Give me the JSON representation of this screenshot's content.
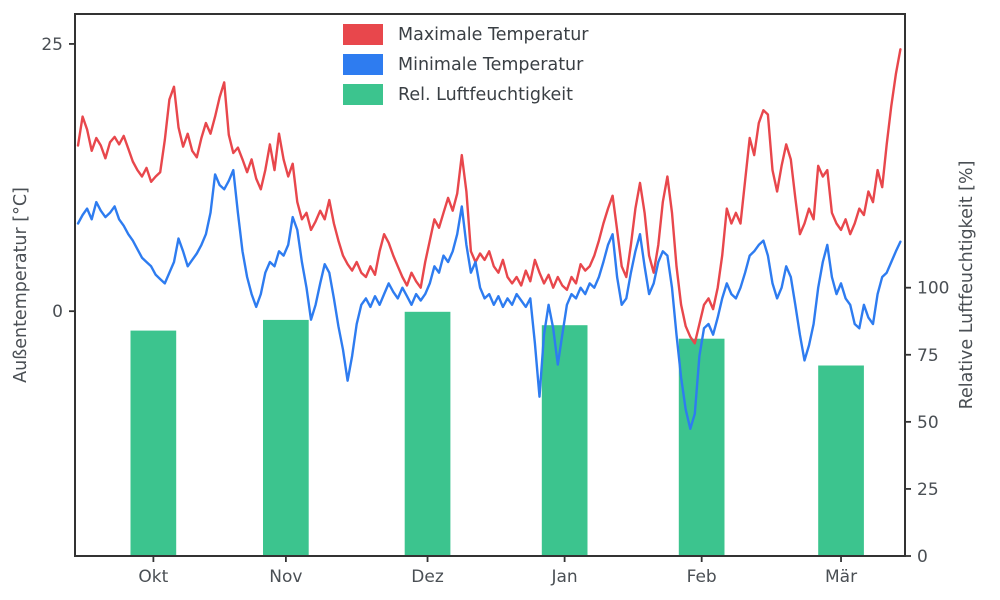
{
  "chart_data": {
    "type": "line+bar",
    "title": "",
    "x_axis": {
      "unit": "day-index",
      "total_days": 181,
      "ticks": [
        {
          "label": "Okt",
          "day": 16.5
        },
        {
          "label": "Nov",
          "day": 45.5
        },
        {
          "label": "Dez",
          "day": 76.5
        },
        {
          "label": "Jan",
          "day": 106.5
        },
        {
          "label": "Feb",
          "day": 136.5
        },
        {
          "label": "Mär",
          "day": 167
        }
      ]
    },
    "left_axis": {
      "label": "Außentemperatur [°C]",
      "ticks": [
        0,
        25
      ],
      "range": [
        -22.9,
        27.8
      ]
    },
    "right_axis": {
      "label": "Relative Luftfeuchtigkeit [%]",
      "ticks": [
        0,
        25,
        50,
        75,
        100
      ],
      "range": [
        0,
        202
      ]
    },
    "grid": false,
    "legend_position": "upper-center",
    "colors": {
      "spine": "#333333",
      "tick_text": "#4a4f54",
      "background": "#ffffff"
    },
    "series": [
      {
        "id": "max-temp",
        "name": "Maximale Temperatur",
        "type": "line",
        "axis": "left",
        "color": "#e8474c",
        "values": [
          15.5,
          18.2,
          17.0,
          15.0,
          16.2,
          15.5,
          14.3,
          15.8,
          16.3,
          15.6,
          16.4,
          15.2,
          14.0,
          13.2,
          12.6,
          13.4,
          12.1,
          12.6,
          13.0,
          16.0,
          19.8,
          21.0,
          17.2,
          15.4,
          16.6,
          15.0,
          14.4,
          16.2,
          17.6,
          16.6,
          18.2,
          20.0,
          21.4,
          16.5,
          14.8,
          15.3,
          14.2,
          13.0,
          14.2,
          12.4,
          11.4,
          13.2,
          15.6,
          13.2,
          16.6,
          14.2,
          12.6,
          13.8,
          10.2,
          8.6,
          9.2,
          7.6,
          8.4,
          9.4,
          8.6,
          10.4,
          8.2,
          6.6,
          5.2,
          4.4,
          3.8,
          4.6,
          3.6,
          3.2,
          4.2,
          3.4,
          5.6,
          7.2,
          6.4,
          5.2,
          4.2,
          3.2,
          2.4,
          3.6,
          2.8,
          2.2,
          4.6,
          6.6,
          8.6,
          7.8,
          9.2,
          10.6,
          9.4,
          11.0,
          14.6,
          11.2,
          5.6,
          4.6,
          5.4,
          4.8,
          5.6,
          4.2,
          3.6,
          4.8,
          3.2,
          2.6,
          3.2,
          2.4,
          3.8,
          2.8,
          4.8,
          3.6,
          2.6,
          3.4,
          2.2,
          3.2,
          2.4,
          2.0,
          3.2,
          2.6,
          4.4,
          3.8,
          4.2,
          5.2,
          6.6,
          8.2,
          9.6,
          10.8,
          7.6,
          4.2,
          3.2,
          6.2,
          9.6,
          12.0,
          9.2,
          5.2,
          3.6,
          6.2,
          10.2,
          12.6,
          9.2,
          4.2,
          0.6,
          -1.4,
          -2.4,
          -3.0,
          -1.2,
          0.6,
          1.2,
          0.2,
          2.2,
          5.2,
          9.6,
          8.2,
          9.2,
          8.2,
          12.2,
          16.2,
          14.6,
          17.6,
          18.8,
          18.4,
          13.2,
          11.2,
          13.6,
          15.6,
          14.2,
          10.6,
          7.2,
          8.2,
          9.6,
          8.6,
          13.6,
          12.6,
          13.2,
          9.2,
          8.2,
          7.6,
          8.6,
          7.2,
          8.2,
          9.6,
          9.0,
          11.2,
          10.2,
          13.2,
          11.6,
          15.6,
          19.2,
          22.2,
          24.5
        ]
      },
      {
        "id": "min-temp",
        "name": "Minimale Temperatur",
        "type": "line",
        "axis": "left",
        "color": "#2e7cf0",
        "values": [
          8.2,
          9.0,
          9.6,
          8.6,
          10.2,
          9.4,
          8.8,
          9.2,
          9.8,
          8.6,
          8.0,
          7.2,
          6.6,
          5.8,
          5.0,
          4.6,
          4.2,
          3.4,
          3.0,
          2.6,
          3.6,
          4.6,
          6.8,
          5.6,
          4.2,
          4.8,
          5.4,
          6.2,
          7.2,
          9.2,
          12.8,
          11.8,
          11.4,
          12.2,
          13.2,
          9.2,
          5.6,
          3.2,
          1.6,
          0.4,
          1.6,
          3.6,
          4.6,
          4.2,
          5.6,
          5.2,
          6.2,
          8.8,
          7.6,
          4.6,
          2.2,
          -0.8,
          0.6,
          2.6,
          4.4,
          3.6,
          1.2,
          -1.4,
          -3.6,
          -6.5,
          -4.2,
          -1.2,
          0.6,
          1.2,
          0.4,
          1.4,
          0.6,
          1.6,
          2.6,
          1.8,
          1.2,
          2.2,
          1.4,
          0.6,
          1.6,
          1.0,
          1.6,
          2.6,
          4.2,
          3.6,
          5.2,
          4.6,
          5.6,
          7.2,
          9.8,
          6.2,
          3.6,
          4.6,
          2.2,
          1.2,
          1.6,
          0.6,
          1.4,
          0.4,
          1.2,
          0.6,
          1.6,
          1.0,
          0.4,
          1.2,
          -3.0,
          -8.0,
          -2.2,
          0.6,
          -1.6,
          -5.0,
          -2.2,
          0.6,
          1.6,
          1.2,
          2.2,
          1.6,
          2.6,
          2.2,
          3.2,
          4.6,
          6.2,
          7.2,
          3.2,
          0.6,
          1.2,
          3.6,
          5.6,
          7.2,
          4.2,
          1.6,
          2.6,
          4.6,
          5.6,
          5.2,
          2.2,
          -2.2,
          -6.2,
          -9.2,
          -11.0,
          -9.6,
          -4.2,
          -1.6,
          -1.2,
          -2.2,
          -0.6,
          1.2,
          2.6,
          1.6,
          1.2,
          2.2,
          3.6,
          5.2,
          5.6,
          6.2,
          6.6,
          5.2,
          2.6,
          1.2,
          2.2,
          4.2,
          3.2,
          0.6,
          -2.2,
          -4.6,
          -3.2,
          -1.2,
          2.2,
          4.6,
          6.2,
          3.2,
          1.6,
          2.6,
          1.2,
          0.6,
          -1.2,
          -1.6,
          0.6,
          -0.6,
          -1.2,
          1.6,
          3.2,
          3.6,
          4.6,
          5.6,
          6.5
        ]
      },
      {
        "id": "humidity",
        "name": "Rel. Luftfeuchtigkeit",
        "type": "bar",
        "axis": "right",
        "color": "#3cc48e",
        "bar_width_days": 10,
        "monthly_values": [
          {
            "month": "Okt",
            "day": 16.5,
            "value": 84
          },
          {
            "month": "Nov",
            "day": 45.5,
            "value": 88
          },
          {
            "month": "Dez",
            "day": 76.5,
            "value": 91
          },
          {
            "month": "Jan",
            "day": 106.5,
            "value": 86
          },
          {
            "month": "Feb",
            "day": 136.5,
            "value": 81
          },
          {
            "month": "Mär",
            "day": 167,
            "value": 71
          }
        ]
      }
    ]
  }
}
